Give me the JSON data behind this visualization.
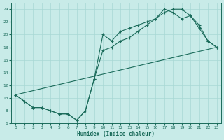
{
  "xlabel": "Humidex (Indice chaleur)",
  "bg_color": "#c8ebe8",
  "line_color": "#1a6b5a",
  "grid_color": "#a8d8d4",
  "xlim": [
    -0.5,
    23.5
  ],
  "ylim": [
    6,
    25
  ],
  "xticks": [
    0,
    1,
    2,
    3,
    4,
    5,
    6,
    7,
    8,
    9,
    10,
    11,
    12,
    13,
    14,
    15,
    16,
    17,
    18,
    19,
    20,
    21,
    22,
    23
  ],
  "yticks": [
    6,
    8,
    10,
    12,
    14,
    16,
    18,
    20,
    22,
    24
  ],
  "line1_x": [
    0,
    1,
    2,
    3,
    4,
    5,
    6,
    7,
    8,
    9,
    10,
    11,
    12,
    13,
    14,
    15,
    16,
    17,
    18,
    19,
    20,
    21,
    22,
    23
  ],
  "line1_y": [
    10.5,
    9.5,
    8.5,
    8.5,
    8.0,
    7.5,
    7.5,
    6.5,
    8.0,
    13.0,
    20.0,
    19.0,
    20.5,
    21.0,
    21.5,
    22.0,
    22.5,
    23.5,
    24.0,
    24.0,
    23.0,
    21.5,
    19.0,
    18.0
  ],
  "line2_x": [
    0,
    1,
    2,
    3,
    4,
    5,
    6,
    7,
    8,
    9,
    10,
    11,
    12,
    13,
    14,
    15,
    16,
    17,
    18,
    19,
    20,
    21,
    22,
    23
  ],
  "line2_y": [
    10.5,
    9.5,
    8.5,
    8.5,
    8.0,
    7.5,
    7.5,
    6.5,
    8.0,
    13.0,
    17.5,
    18.0,
    19.0,
    19.5,
    20.5,
    21.5,
    22.5,
    24.0,
    23.5,
    22.5,
    23.0,
    21.0,
    19.0,
    18.0
  ],
  "line3_x": [
    0,
    23
  ],
  "line3_y": [
    10.5,
    18.0
  ]
}
